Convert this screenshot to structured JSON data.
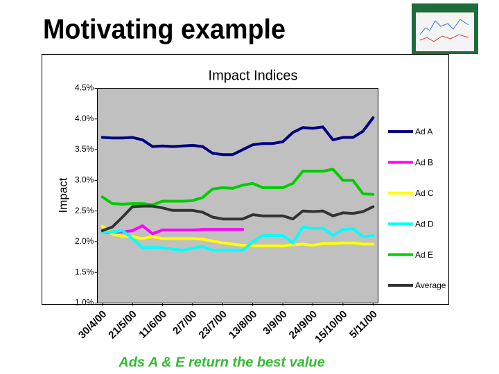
{
  "slide_title": "Motivating example",
  "caption": "Ads A & E return the best value",
  "chart_data": {
    "type": "line",
    "title": "Impact Indices",
    "ylabel": "Impact",
    "categories": [
      "30/4/00",
      null,
      null,
      "21/5/00",
      null,
      null,
      "11/6/00",
      null,
      null,
      "2/7/00",
      null,
      null,
      "23/7/00",
      null,
      null,
      "13/8/00",
      null,
      null,
      "3/9/00",
      null,
      null,
      "24/9/00",
      null,
      null,
      "15/10/00",
      null,
      null,
      "5/11/00"
    ],
    "ylim": [
      1.0,
      4.5
    ],
    "yticks": [
      {
        "value": 1.0,
        "label": "1.0%"
      },
      {
        "value": 1.5,
        "label": "1.5%"
      },
      {
        "value": 2.0,
        "label": "2.0%"
      },
      {
        "value": 2.5,
        "label": "2.5%"
      },
      {
        "value": 3.0,
        "label": "3.0%"
      },
      {
        "value": 3.5,
        "label": "3.5%"
      },
      {
        "value": 4.0,
        "label": "4.0%"
      },
      {
        "value": 4.5,
        "label": "4.5%"
      }
    ],
    "grid": false,
    "legend": "right",
    "series": [
      {
        "name": "Ad A",
        "color": "#000080",
        "values": [
          3.7,
          3.69,
          3.69,
          3.7,
          3.66,
          3.55,
          3.56,
          3.55,
          3.56,
          3.57,
          3.55,
          3.44,
          3.42,
          3.42,
          3.5,
          3.58,
          3.6,
          3.6,
          3.63,
          3.78,
          3.86,
          3.85,
          3.87,
          3.66,
          3.7,
          3.7,
          3.8,
          4.02
        ]
      },
      {
        "name": "Ad B",
        "color": "#ff00ff",
        "values": [
          2.15,
          2.15,
          2.16,
          2.18,
          2.26,
          2.13,
          2.19,
          2.19,
          2.19,
          2.19,
          2.2,
          2.2,
          2.2,
          2.2,
          2.2,
          null,
          null,
          null,
          null,
          null,
          null,
          null,
          null,
          null,
          null,
          null,
          null,
          null
        ]
      },
      {
        "name": "Ad C",
        "color": "#ffff00",
        "values": [
          2.25,
          2.12,
          2.09,
          2.08,
          2.05,
          2.08,
          2.05,
          2.05,
          2.05,
          2.05,
          2.04,
          2.01,
          1.98,
          1.96,
          1.94,
          1.93,
          1.93,
          1.93,
          1.93,
          1.95,
          1.96,
          1.94,
          1.97,
          1.97,
          1.98,
          1.98,
          1.96,
          1.96
        ]
      },
      {
        "name": "Ad D",
        "color": "#00ffff",
        "values": [
          2.15,
          2.16,
          2.18,
          2.05,
          1.9,
          1.91,
          1.9,
          1.88,
          1.86,
          1.89,
          1.92,
          1.86,
          1.86,
          1.86,
          1.86,
          2.0,
          2.1,
          2.1,
          2.1,
          1.98,
          2.24,
          2.21,
          2.22,
          2.1,
          2.2,
          2.21,
          2.08,
          2.1
        ]
      },
      {
        "name": "Ad E",
        "color": "#00cc00",
        "values": [
          2.73,
          2.62,
          2.61,
          2.62,
          2.62,
          2.6,
          2.66,
          2.66,
          2.66,
          2.67,
          2.72,
          2.86,
          2.88,
          2.87,
          2.92,
          2.95,
          2.88,
          2.88,
          2.88,
          2.95,
          3.15,
          3.15,
          3.15,
          3.18,
          3.0,
          3.0,
          2.78,
          2.77
        ]
      },
      {
        "name": "Average",
        "color": "#333333",
        "values": [
          2.18,
          2.24,
          2.4,
          2.57,
          2.58,
          2.58,
          2.55,
          2.51,
          2.51,
          2.51,
          2.48,
          2.4,
          2.37,
          2.37,
          2.37,
          2.44,
          2.42,
          2.42,
          2.42,
          2.37,
          2.5,
          2.49,
          2.5,
          2.42,
          2.47,
          2.46,
          2.49,
          2.57
        ]
      }
    ]
  }
}
